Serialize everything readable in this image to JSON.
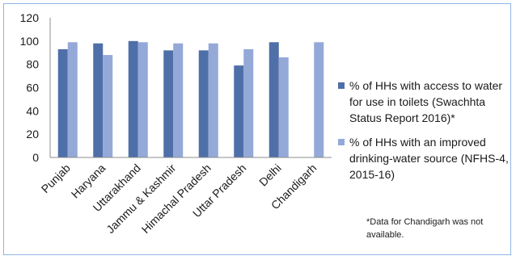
{
  "chart_data": {
    "type": "bar",
    "categories": [
      "Punjab",
      "Haryana",
      "Uttarakhand",
      "Jammu & Kashmir",
      "Himachal Pradesh",
      "Uttar Pradesh",
      "Delhi",
      "Chandigarh"
    ],
    "series": [
      {
        "name": "% of HHs with access to water for use in toilets (Swachhta Status Report 2016)*",
        "color": "#4f6fa8",
        "values": [
          93,
          98,
          100,
          92,
          92,
          79,
          99,
          null
        ]
      },
      {
        "name": "% of HHs with an improved drinking-water source (NFHS-4, 2015-16)",
        "color": "#94a9d8",
        "values": [
          99,
          88,
          99,
          98,
          98,
          93,
          86,
          99
        ]
      }
    ],
    "ylim": [
      0,
      120
    ],
    "yticks": [
      0,
      20,
      40,
      60,
      80,
      100,
      120
    ],
    "grid": false,
    "legend": "right",
    "note": "*Data for Chandigarh was not available."
  }
}
